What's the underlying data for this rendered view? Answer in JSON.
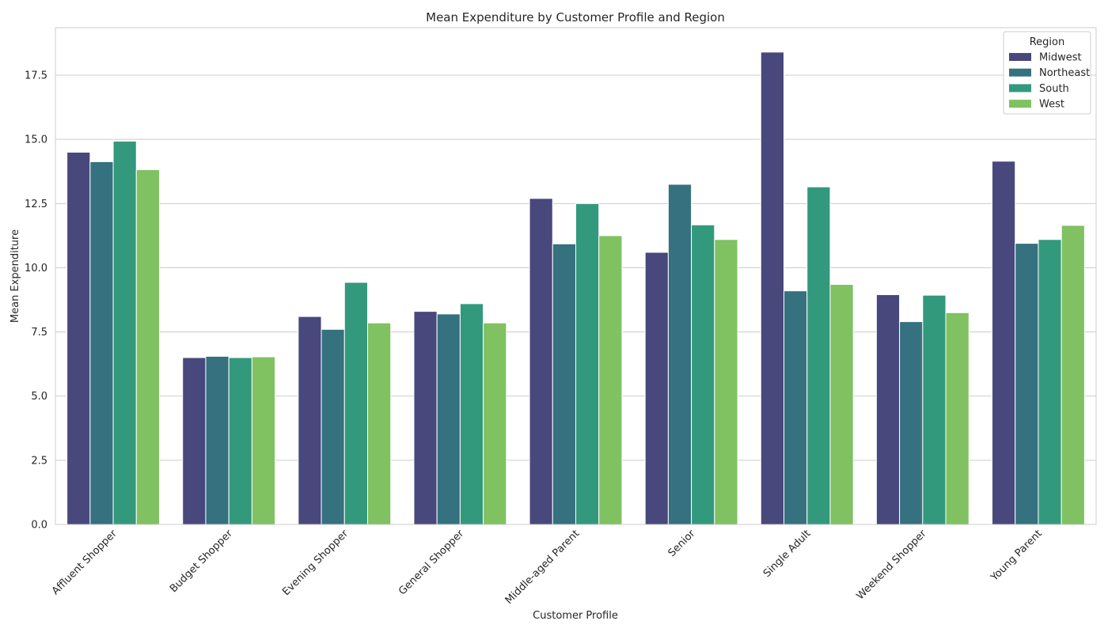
{
  "chart_data": {
    "type": "bar",
    "title": "Mean Expenditure by Customer Profile and Region",
    "xlabel": "Customer Profile",
    "ylabel": "Mean Expenditure",
    "ylim": [
      0,
      19.35
    ],
    "yticks": [
      0.0,
      2.5,
      5.0,
      7.5,
      10.0,
      12.5,
      15.0,
      17.5
    ],
    "ytick_labels": [
      "0.0",
      "2.5",
      "5.0",
      "7.5",
      "10.0",
      "12.5",
      "15.0",
      "17.5"
    ],
    "grid": "horizontal",
    "legend": {
      "title": "Region",
      "placement": "top-right"
    },
    "categories": [
      "Affluent Shopper",
      "Budget Shopper",
      "Evening Shopper",
      "General Shopper",
      "Middle-aged Parent",
      "Senior",
      "Single Adult",
      "Weekend Shopper",
      "Young Parent"
    ],
    "series": [
      {
        "name": "Midwest",
        "color": "#48487d",
        "values": [
          14.5,
          6.5,
          8.1,
          8.3,
          12.7,
          10.6,
          18.4,
          8.95,
          14.15
        ]
      },
      {
        "name": "Northeast",
        "color": "#35717f",
        "values": [
          14.13,
          6.55,
          7.6,
          8.2,
          10.93,
          13.25,
          9.1,
          7.9,
          10.95
        ]
      },
      {
        "name": "South",
        "color": "#33997c",
        "values": [
          14.93,
          6.5,
          9.43,
          8.6,
          12.5,
          11.67,
          13.15,
          8.93,
          11.1
        ]
      },
      {
        "name": "West",
        "color": "#80c162",
        "values": [
          13.82,
          6.53,
          7.85,
          7.85,
          11.25,
          11.1,
          9.35,
          8.25,
          11.65
        ]
      }
    ]
  }
}
